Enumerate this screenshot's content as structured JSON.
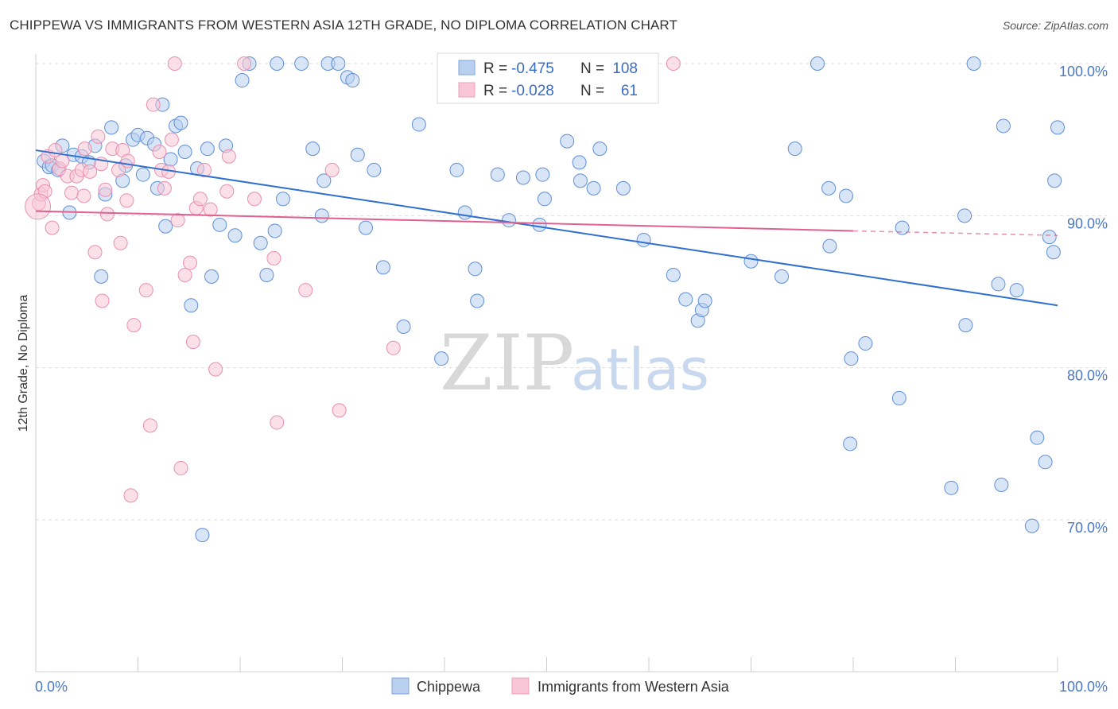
{
  "title": "CHIPPEWA VS IMMIGRANTS FROM WESTERN ASIA 12TH GRADE, NO DIPLOMA CORRELATION CHART",
  "source": "Source: ZipAtlas.com",
  "colors": {
    "blue": "#4a78c6",
    "blue_fill": "#b8cff0",
    "blue_line": "#2f6fd0",
    "pink": "#e87aa0",
    "pink_fill": "#f8c6d6",
    "pink_line": "#e0608f"
  },
  "legend": {
    "rows": [
      {
        "r_label": "R =",
        "r_value": "-0.475",
        "n_label": "N =",
        "n_value": "108"
      },
      {
        "r_label": "R =",
        "r_value": "-0.028",
        "n_label": "N =",
        "n_value": "61"
      }
    ]
  },
  "watermark": {
    "zip": "ZIP",
    "atlas": "atlas"
  },
  "chart_data": {
    "type": "scatter",
    "title": "CHIPPEWA VS IMMIGRANTS FROM WESTERN ASIA 12TH GRADE, NO DIPLOMA CORRELATION CHART",
    "xlabel": "",
    "ylabel": "12th Grade, No Diploma",
    "xlim": [
      0,
      100
    ],
    "ylim": [
      60,
      101
    ],
    "x_tick_labels": [
      "0.0%",
      "100.0%"
    ],
    "y_tick_labels": [
      "70.0%",
      "80.0%",
      "90.0%",
      "100.0%"
    ],
    "y_ticks": [
      70,
      80,
      90,
      100
    ],
    "grid": true,
    "legend_position": "top-center",
    "series": [
      {
        "name": "Chippewa",
        "color": "#4a78c6",
        "trend": {
          "x0": 0,
          "y0": 94.3,
          "x1": 100,
          "y1": 84.1
        },
        "points": [
          [
            0.8,
            93.6
          ],
          [
            1.3,
            93.2
          ],
          [
            1.6,
            93.3
          ],
          [
            2.2,
            93.0
          ],
          [
            2.6,
            94.6
          ],
          [
            3.3,
            90.2
          ],
          [
            3.7,
            94.0
          ],
          [
            4.5,
            93.9
          ],
          [
            5.2,
            93.5
          ],
          [
            5.8,
            94.6
          ],
          [
            6.4,
            86.0
          ],
          [
            6.8,
            91.4
          ],
          [
            7.4,
            95.8
          ],
          [
            8.5,
            92.3
          ],
          [
            8.8,
            93.3
          ],
          [
            9.5,
            95.0
          ],
          [
            10.0,
            95.3
          ],
          [
            10.5,
            92.7
          ],
          [
            10.9,
            95.1
          ],
          [
            11.6,
            94.7
          ],
          [
            11.9,
            91.8
          ],
          [
            12.4,
            97.3
          ],
          [
            12.7,
            89.3
          ],
          [
            13.2,
            93.7
          ],
          [
            13.7,
            95.9
          ],
          [
            14.2,
            96.1
          ],
          [
            14.6,
            94.2
          ],
          [
            15.2,
            84.1
          ],
          [
            15.8,
            93.1
          ],
          [
            16.3,
            69.0
          ],
          [
            16.8,
            94.4
          ],
          [
            17.2,
            86.0
          ],
          [
            18.0,
            89.4
          ],
          [
            18.6,
            94.6
          ],
          [
            19.5,
            88.7
          ],
          [
            20.2,
            98.9
          ],
          [
            20.9,
            100.0
          ],
          [
            22.0,
            88.2
          ],
          [
            22.6,
            86.1
          ],
          [
            23.4,
            89.0
          ],
          [
            23.6,
            100.0
          ],
          [
            24.2,
            91.1
          ],
          [
            26.0,
            100.0
          ],
          [
            27.1,
            94.4
          ],
          [
            28.0,
            90.0
          ],
          [
            28.2,
            92.3
          ],
          [
            28.6,
            100.0
          ],
          [
            29.6,
            100.0
          ],
          [
            30.5,
            99.1
          ],
          [
            31.0,
            98.9
          ],
          [
            31.5,
            94.0
          ],
          [
            32.3,
            89.2
          ],
          [
            33.1,
            93.0
          ],
          [
            34.0,
            86.6
          ],
          [
            36.0,
            82.7
          ],
          [
            37.5,
            96.0
          ],
          [
            39.7,
            80.6
          ],
          [
            41.2,
            93.0
          ],
          [
            42.0,
            90.2
          ],
          [
            43.0,
            86.5
          ],
          [
            43.2,
            84.4
          ],
          [
            45.2,
            92.7
          ],
          [
            46.3,
            89.7
          ],
          [
            47.7,
            92.5
          ],
          [
            49.3,
            89.4
          ],
          [
            49.6,
            92.7
          ],
          [
            49.8,
            91.1
          ],
          [
            52.0,
            94.9
          ],
          [
            53.2,
            93.5
          ],
          [
            53.3,
            92.3
          ],
          [
            54.6,
            91.8
          ],
          [
            55.2,
            94.4
          ],
          [
            57.5,
            91.8
          ],
          [
            59.5,
            88.4
          ],
          [
            62.4,
            86.1
          ],
          [
            63.6,
            84.5
          ],
          [
            64.8,
            83.1
          ],
          [
            65.2,
            83.8
          ],
          [
            65.5,
            84.4
          ],
          [
            70.0,
            87.0
          ],
          [
            73.0,
            86.0
          ],
          [
            74.3,
            94.4
          ],
          [
            77.6,
            91.8
          ],
          [
            77.7,
            88.0
          ],
          [
            79.3,
            91.3
          ],
          [
            79.7,
            75.0
          ],
          [
            79.8,
            80.6
          ],
          [
            81.2,
            81.6
          ],
          [
            84.5,
            78.0
          ],
          [
            84.8,
            89.2
          ],
          [
            89.6,
            72.1
          ],
          [
            90.9,
            90.0
          ],
          [
            91.0,
            82.8
          ],
          [
            91.8,
            100.0
          ],
          [
            94.2,
            85.5
          ],
          [
            94.5,
            72.3
          ],
          [
            94.7,
            95.9
          ],
          [
            96.0,
            85.1
          ],
          [
            97.5,
            69.6
          ],
          [
            98.0,
            75.4
          ],
          [
            98.8,
            73.8
          ],
          [
            99.2,
            88.6
          ],
          [
            99.6,
            87.6
          ],
          [
            99.7,
            92.3
          ],
          [
            100.0,
            95.8
          ],
          [
            76.5,
            100.0
          ]
        ]
      },
      {
        "name": "Immigrants from Western Asia",
        "color": "#e87aa0",
        "trend": {
          "x0": 0,
          "y0": 90.3,
          "x1": 80,
          "y1": 89.0,
          "dash_to_x": 100,
          "dash_to_y": 88.7
        },
        "points": [
          [
            0.3,
            90.8
          ],
          [
            0.5,
            91.4
          ],
          [
            0.7,
            92.0
          ],
          [
            0.9,
            91.6
          ],
          [
            1.2,
            93.9
          ],
          [
            1.6,
            89.2
          ],
          [
            1.9,
            94.3
          ],
          [
            2.3,
            93.1
          ],
          [
            2.6,
            93.6
          ],
          [
            3.1,
            92.6
          ],
          [
            3.5,
            91.5
          ],
          [
            4.0,
            92.6
          ],
          [
            4.5,
            93.0
          ],
          [
            4.7,
            91.3
          ],
          [
            4.8,
            94.4
          ],
          [
            5.3,
            92.9
          ],
          [
            5.8,
            87.6
          ],
          [
            6.1,
            95.2
          ],
          [
            6.4,
            93.4
          ],
          [
            6.5,
            84.4
          ],
          [
            6.8,
            91.7
          ],
          [
            7.0,
            90.1
          ],
          [
            7.5,
            94.4
          ],
          [
            8.1,
            93.0
          ],
          [
            8.3,
            88.2
          ],
          [
            8.5,
            94.3
          ],
          [
            8.9,
            91.0
          ],
          [
            9.0,
            93.6
          ],
          [
            9.3,
            71.6
          ],
          [
            9.6,
            82.8
          ],
          [
            10.8,
            85.1
          ],
          [
            11.2,
            76.2
          ],
          [
            11.5,
            97.3
          ],
          [
            12.1,
            94.2
          ],
          [
            12.3,
            93.0
          ],
          [
            12.6,
            91.8
          ],
          [
            13.0,
            92.9
          ],
          [
            13.3,
            95.0
          ],
          [
            13.6,
            100.0
          ],
          [
            13.9,
            89.7
          ],
          [
            14.2,
            73.4
          ],
          [
            14.6,
            86.1
          ],
          [
            15.1,
            86.9
          ],
          [
            15.4,
            81.7
          ],
          [
            15.7,
            90.5
          ],
          [
            16.1,
            91.1
          ],
          [
            16.5,
            93.0
          ],
          [
            17.1,
            90.4
          ],
          [
            17.6,
            79.9
          ],
          [
            18.7,
            91.6
          ],
          [
            18.9,
            93.9
          ],
          [
            20.4,
            100.0
          ],
          [
            21.4,
            91.1
          ],
          [
            23.3,
            87.2
          ],
          [
            23.6,
            76.4
          ],
          [
            26.4,
            85.1
          ],
          [
            29.0,
            93.0
          ],
          [
            29.7,
            77.2
          ],
          [
            35.0,
            81.3
          ],
          [
            62.4,
            100.0
          ],
          [
            0.2,
            90.6
          ]
        ]
      }
    ]
  },
  "bottom_legend": [
    {
      "label": "Chippewa"
    },
    {
      "label": "Immigrants from Western Asia"
    }
  ]
}
